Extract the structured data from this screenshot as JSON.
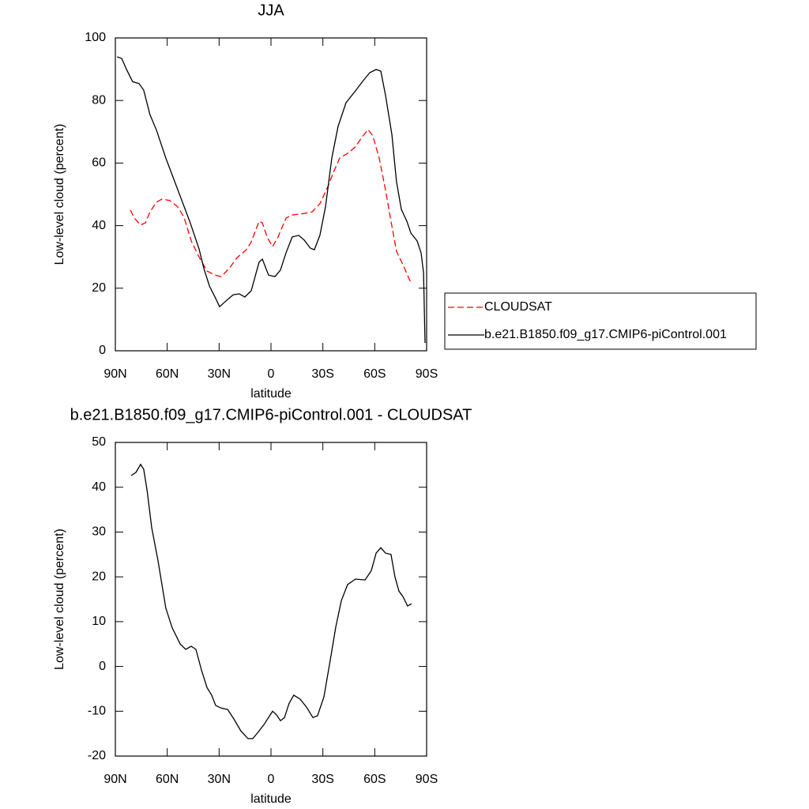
{
  "chart_data": [
    {
      "type": "line",
      "title": "JJA",
      "xlabel": "latitude",
      "ylabel": "Low-level cloud (percent)",
      "xlim": [
        90,
        -90
      ],
      "ylim": [
        0,
        100
      ],
      "xticks": [
        {
          "value": 90,
          "label": "90N"
        },
        {
          "value": 60,
          "label": "60N"
        },
        {
          "value": 30,
          "label": "30N"
        },
        0,
        {
          "value": -30,
          "label": "30S"
        },
        {
          "value": -60,
          "label": "60S"
        },
        {
          "value": -90,
          "label": "90S"
        }
      ],
      "yticks": [
        0,
        20,
        40,
        60,
        80,
        100
      ],
      "legend": "right",
      "series": [
        {
          "name": "CLOUDSAT",
          "color": "#ff0000",
          "line_style": "dashed",
          "x": [
            81.3,
            79,
            75.4,
            72.6,
            70,
            66.2,
            63,
            58.5,
            53.9,
            50.3,
            46.1,
            41.6,
            37,
            32.4,
            28.8,
            24.2,
            19.6,
            14.2,
            11.4,
            6.9,
            5,
            2.3,
            -0.9,
            -4.1,
            -8.7,
            -12.3,
            -19.2,
            -23.8,
            -28.3,
            -32.9,
            -36.1,
            -39.7,
            -44.3,
            -48.9,
            -52.5,
            -56.2,
            -58.9,
            -62.6,
            -66.2,
            -69.4,
            -72.6,
            -76.3,
            -80.9
          ],
          "values": [
            45,
            42.4,
            40.2,
            40.9,
            44.4,
            47.5,
            48.5,
            48,
            46,
            42.7,
            35.1,
            30,
            25.5,
            24.2,
            23.7,
            26.3,
            29.8,
            32.3,
            34.8,
            41.4,
            40.9,
            36.4,
            33.3,
            36.4,
            42.4,
            43.4,
            43.9,
            44.4,
            47,
            52.5,
            57,
            61.6,
            63.1,
            65.2,
            68.2,
            70.7,
            68.7,
            61.6,
            51.5,
            41.4,
            31.8,
            27.5,
            21.7
          ]
        },
        {
          "name": "b.e21.B1850.f09_g17.CMIP6-piControl.001",
          "color": "#000000",
          "line_style": "solid",
          "x": [
            89,
            86.3,
            83.6,
            80,
            76.3,
            73.6,
            70,
            66.2,
            60.8,
            53.9,
            47,
            41.6,
            38.8,
            35.6,
            32.4,
            29.7,
            26.5,
            21.9,
            18.3,
            15.1,
            11.4,
            6.9,
            5,
            1.4,
            -2.3,
            -5.5,
            -8.7,
            -12.3,
            -16,
            -19.2,
            -22.8,
            -25.1,
            -28.3,
            -31.5,
            -35.2,
            -38.8,
            -43.4,
            -48.9,
            -53.4,
            -57.1,
            -60.8,
            -63.5,
            -66.2,
            -69.9,
            -72.6,
            -75.4,
            -78.6,
            -80.9,
            -84.5,
            -86.8,
            -88.2,
            -89.1
          ],
          "values": [
            94,
            93.4,
            90,
            86,
            85.4,
            83.3,
            75.5,
            70.5,
            61.6,
            51.5,
            41.4,
            32.6,
            26.3,
            20.7,
            17.2,
            14.1,
            15.7,
            17.9,
            18.2,
            17.2,
            19.2,
            28.3,
            29.3,
            24.2,
            23.7,
            25.8,
            31.3,
            36.4,
            36.9,
            35.4,
            32.8,
            32.3,
            36.9,
            46,
            61.6,
            71.7,
            79.3,
            83.1,
            86.4,
            88.9,
            89.9,
            89.4,
            81.8,
            69.2,
            54,
            45.2,
            41.4,
            37.6,
            35.1,
            31.3,
            25,
            2.5
          ]
        }
      ]
    },
    {
      "type": "line",
      "title": "b.e21.B1850.f09_g17.CMIP6-piControl.001 - CLOUDSAT",
      "xlabel": "latitude",
      "ylabel": "Low-level cloud (percent)",
      "xlim": [
        90,
        -90
      ],
      "ylim": [
        -20,
        50
      ],
      "xticks": [
        {
          "value": 90,
          "label": "90N"
        },
        {
          "value": 60,
          "label": "60N"
        },
        {
          "value": 30,
          "label": "30N"
        },
        0,
        {
          "value": -30,
          "label": "30S"
        },
        {
          "value": -60,
          "label": "60S"
        },
        {
          "value": -90,
          "label": "90S"
        }
      ],
      "yticks": [
        -20,
        -10,
        0,
        10,
        20,
        30,
        40,
        50
      ],
      "series": [
        {
          "color": "#000000",
          "line_style": "solid",
          "x": [
            80.9,
            78.1,
            75.4,
            73.6,
            71.7,
            69,
            65.3,
            60.8,
            57.1,
            52.5,
            49.3,
            46.1,
            43.4,
            40.2,
            37,
            34.3,
            32,
            28.8,
            25.1,
            21.5,
            17.4,
            13.3,
            10.5,
            7.3,
            4.1,
            -0.9,
            -3.2,
            -5.5,
            -7.8,
            -10.5,
            -13.2,
            -16.9,
            -20.6,
            -24.2,
            -26.9,
            -30.6,
            -34.3,
            -37.5,
            -40.7,
            -44.3,
            -48.9,
            -54.4,
            -58,
            -60.8,
            -63.5,
            -66.2,
            -69.4,
            -71.7,
            -74,
            -76.3,
            -79,
            -81.3
          ],
          "values": [
            42.6,
            43.3,
            45.1,
            44,
            39.4,
            31,
            23.5,
            13,
            8.6,
            5,
            3.8,
            4.5,
            3.8,
            -0.8,
            -4.7,
            -6.4,
            -8.7,
            -9.3,
            -9.6,
            -11.7,
            -14.4,
            -16.1,
            -16.1,
            -14.6,
            -13,
            -10,
            -10.8,
            -12.1,
            -11.4,
            -8.2,
            -6.4,
            -7.3,
            -9.1,
            -11.4,
            -11,
            -6.8,
            1.5,
            8.9,
            14.7,
            18.3,
            19.5,
            19.3,
            21.4,
            25.3,
            26.5,
            25.3,
            25,
            20,
            16.8,
            15.6,
            13.5,
            14
          ]
        }
      ]
    }
  ]
}
